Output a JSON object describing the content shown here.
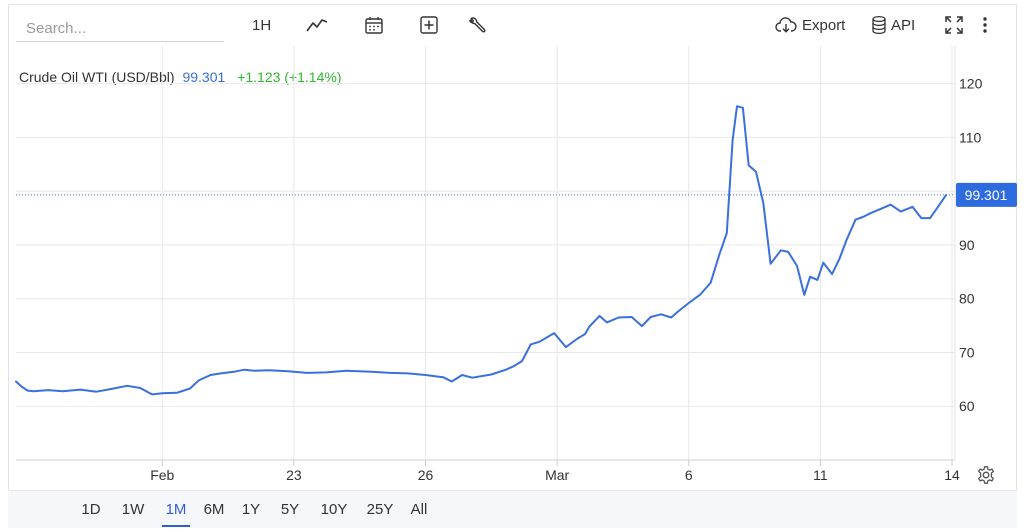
{
  "search": {
    "placeholder": "Search..."
  },
  "toolbar": {
    "interval": "1H",
    "export_label": "Export",
    "api_label": "API"
  },
  "legend": {
    "name": "Crude Oil WTI (USD/Bbl)",
    "price": "99.301",
    "change": "+1.123 (+1.14%)"
  },
  "range_selector": {
    "options": [
      "1D",
      "1W",
      "1M",
      "6M",
      "1Y",
      "5Y",
      "10Y",
      "25Y",
      "All"
    ],
    "selected": "1M"
  },
  "colors": {
    "line": "#3a6fe0",
    "price_tag": "#2f6be0",
    "change_positive": "#2eb82e",
    "grid": "#e8e8e8"
  },
  "chart_data": {
    "type": "line",
    "title": "Crude Oil WTI (USD/Bbl)",
    "xlabel": "",
    "ylabel": "",
    "y_axis_position": "right",
    "ylim": [
      50,
      127
    ],
    "y_ticks": [
      60,
      70,
      80,
      90,
      100,
      110,
      120
    ],
    "y_tick_labels": [
      "60",
      "70",
      "80",
      "90",
      "",
      "110",
      "120"
    ],
    "x_ticks": [
      {
        "label": "Feb",
        "t": 10.0
      },
      {
        "label": "23",
        "t": 19.0
      },
      {
        "label": "26",
        "t": 28.0
      },
      {
        "label": "Mar",
        "t": 37.0
      },
      {
        "label": "6",
        "t": 46.0
      },
      {
        "label": "11",
        "t": 55.0
      },
      {
        "label": "14",
        "t": 64.0
      }
    ],
    "xlim": [
      0.0,
      64.0
    ],
    "last_price": 99.301,
    "last_price_label": "99.301",
    "grid": true,
    "series": [
      {
        "name": "Crude Oil WTI",
        "x": [
          0.0,
          0.4,
          0.8,
          1.2,
          2.2,
          3.2,
          4.4,
          5.5,
          6.5,
          7.6,
          8.5,
          9.3,
          10.0,
          11.0,
          11.9,
          12.5,
          13.3,
          14.0,
          14.9,
          15.6,
          16.3,
          17.3,
          18.6,
          19.9,
          21.2,
          22.6,
          24.3,
          25.6,
          26.8,
          28.0,
          29.2,
          29.8,
          30.5,
          31.2,
          32.5,
          33.5,
          34.0,
          34.6,
          35.2,
          35.8,
          36.8,
          37.6,
          38.4,
          38.9,
          39.2,
          39.9,
          40.4,
          41.2,
          42.1,
          42.8,
          43.4,
          44.1,
          44.8,
          45.3,
          46.0,
          46.8,
          47.5,
          48.1,
          48.6,
          49.0,
          49.3,
          49.7,
          50.1,
          50.6,
          51.1,
          51.6,
          52.3,
          52.8,
          53.4,
          53.9,
          54.3,
          54.8,
          55.2,
          55.8,
          56.3,
          56.8,
          57.4,
          57.9,
          58.5,
          59.2,
          59.8,
          60.5,
          61.3,
          61.9,
          62.5,
          63.1,
          63.6
        ],
        "y": [
          64.6,
          63.6,
          62.9,
          62.8,
          63.0,
          62.8,
          63.1,
          62.7,
          63.2,
          63.8,
          63.4,
          62.2,
          62.4,
          62.5,
          63.3,
          64.8,
          65.8,
          66.1,
          66.4,
          66.8,
          66.6,
          66.7,
          66.5,
          66.2,
          66.3,
          66.6,
          66.4,
          66.2,
          66.1,
          65.8,
          65.4,
          64.6,
          65.8,
          65.3,
          65.9,
          66.8,
          67.4,
          68.4,
          71.5,
          72.0,
          73.6,
          71.0,
          72.6,
          73.4,
          74.8,
          76.8,
          75.6,
          76.5,
          76.6,
          74.9,
          76.6,
          77.1,
          76.5,
          77.7,
          79.2,
          80.8,
          83.0,
          88.3,
          92.2,
          109.5,
          115.8,
          115.5,
          104.8,
          103.6,
          97.8,
          86.5,
          89.0,
          88.7,
          86.1,
          80.7,
          84.1,
          83.5,
          86.7,
          84.6,
          87.4,
          91.0,
          94.7,
          95.2,
          96.0,
          96.8,
          97.5,
          96.2,
          97.1,
          95.0,
          95.0,
          97.3,
          99.3
        ]
      }
    ]
  }
}
